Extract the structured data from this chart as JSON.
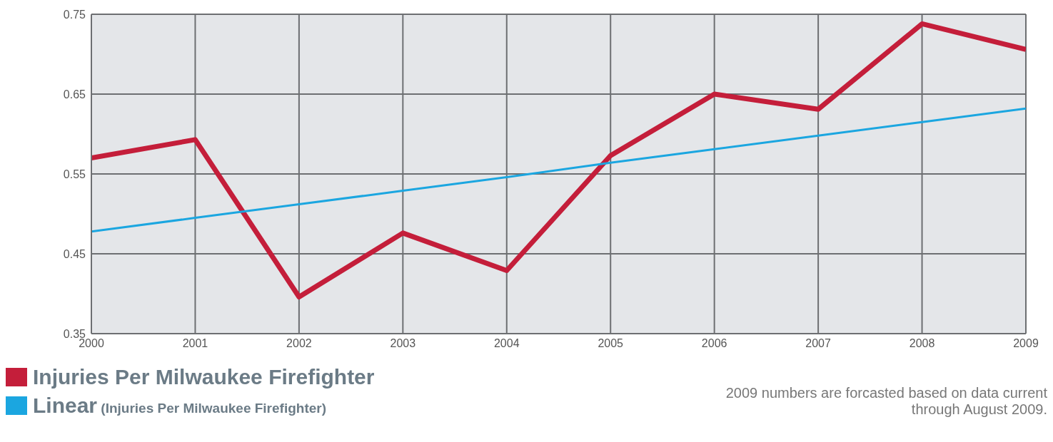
{
  "chart_data": {
    "type": "line",
    "x": [
      2000,
      2001,
      2002,
      2003,
      2004,
      2005,
      2006,
      2007,
      2008,
      2009
    ],
    "series": [
      {
        "name": "Injuries Per Milwaukee Firefighter",
        "color": "#c41e3a",
        "values": [
          0.57,
          0.593,
          0.396,
          0.476,
          0.429,
          0.573,
          0.65,
          0.631,
          0.738,
          0.706
        ]
      },
      {
        "name": "Linear (Injuries Per Milwaukee Firefighter)",
        "color": "#1ba6e0",
        "values": [
          0.478,
          0.495,
          0.512,
          0.529,
          0.546,
          0.564,
          0.581,
          0.598,
          0.615,
          0.632
        ]
      }
    ],
    "xlim": [
      2000,
      2009
    ],
    "xticks": [
      2000,
      2001,
      2002,
      2003,
      2004,
      2005,
      2006,
      2007,
      2008,
      2009
    ],
    "ylim": [
      0.35,
      0.75
    ],
    "yticks": [
      0.35,
      0.45,
      0.55,
      0.65,
      0.75
    ],
    "grid": true,
    "legend": "bottom left",
    "marker": "none",
    "annotations": [
      "2009 numbers are forcasted based on data current through August 2009."
    ]
  }
}
